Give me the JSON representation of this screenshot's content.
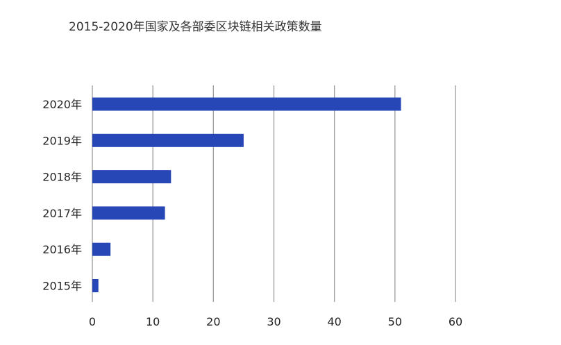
{
  "chart_data": {
    "type": "bar",
    "orientation": "horizontal",
    "title": "2015-2020年国家及各部委区块链相关政策数量",
    "xlabel": "",
    "ylabel": "",
    "categories": [
      "2020年",
      "2019年",
      "2018年",
      "2017年",
      "2016年",
      "2015年"
    ],
    "values": [
      51,
      25,
      13,
      12,
      3,
      1
    ],
    "xlim": [
      0,
      60
    ],
    "x_ticks": [
      0,
      10,
      20,
      30,
      40,
      50,
      60
    ],
    "grid": "vertical",
    "legend": "none",
    "bar_color": "#2647b5"
  }
}
